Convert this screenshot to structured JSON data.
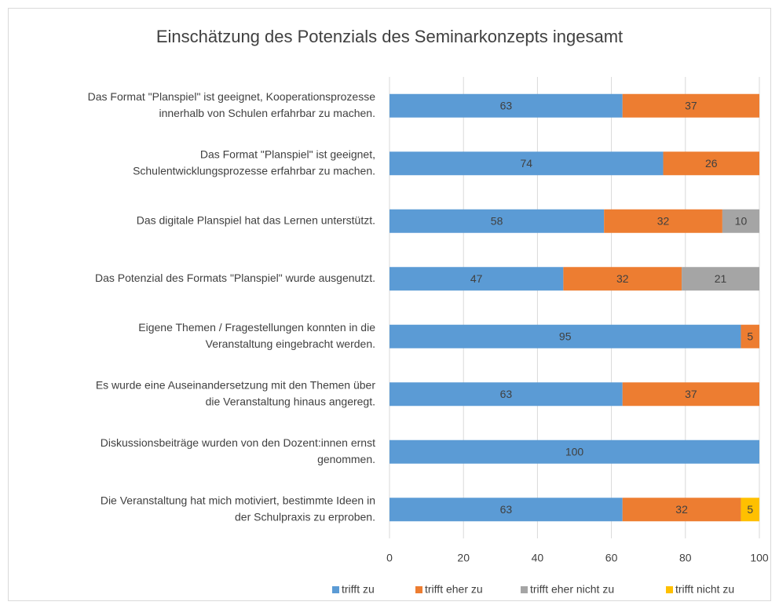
{
  "chart_data": {
    "type": "stacked_barh",
    "title": "Einschätzung des Potenzials des Seminarkonzepts ingesamt",
    "categories": [
      [
        "Das Format \"Planspiel\" ist geeignet, Kooperationsprozesse",
        "innerhalb von Schulen erfahrbar zu machen."
      ],
      [
        "Das Format \"Planspiel\" ist geeignet,",
        "Schulentwicklungsprozesse erfahrbar zu machen."
      ],
      [
        "Das digitale Planspiel hat das Lernen unterstützt."
      ],
      [
        "Das Potenzial des Formats \"Planspiel\" wurde ausgenutzt."
      ],
      [
        "Eigene Themen / Fragestellungen konnten in die",
        "Veranstaltung eingebracht werden."
      ],
      [
        "Es wurde eine Auseinandersetzung mit den Themen über",
        "die Veranstaltung hinaus angeregt."
      ],
      [
        "Diskussionsbeiträge wurden von den Dozent:innen ernst",
        "genommen."
      ],
      [
        "Die Veranstaltung hat mich motiviert, bestimmte Ideen in",
        "der Schulpraxis zu erproben."
      ]
    ],
    "series": [
      {
        "name": "trifft zu",
        "color": "#5b9bd5",
        "values": [
          63,
          74,
          58,
          47,
          95,
          63,
          100,
          63
        ]
      },
      {
        "name": "trifft eher zu",
        "color": "#ed7d31",
        "values": [
          37,
          26,
          32,
          32,
          5,
          37,
          null,
          32
        ]
      },
      {
        "name": "trifft eher nicht zu",
        "color": "#a5a5a5",
        "values": [
          null,
          null,
          10,
          21,
          null,
          null,
          null,
          null
        ]
      },
      {
        "name": "trifft nicht zu",
        "color": "#ffc000",
        "values": [
          null,
          null,
          null,
          null,
          null,
          null,
          null,
          5
        ]
      }
    ],
    "xlim": [
      0,
      100
    ],
    "xticks": [
      0,
      20,
      40,
      60,
      80,
      100
    ],
    "grid": true,
    "legend": "bottom"
  }
}
